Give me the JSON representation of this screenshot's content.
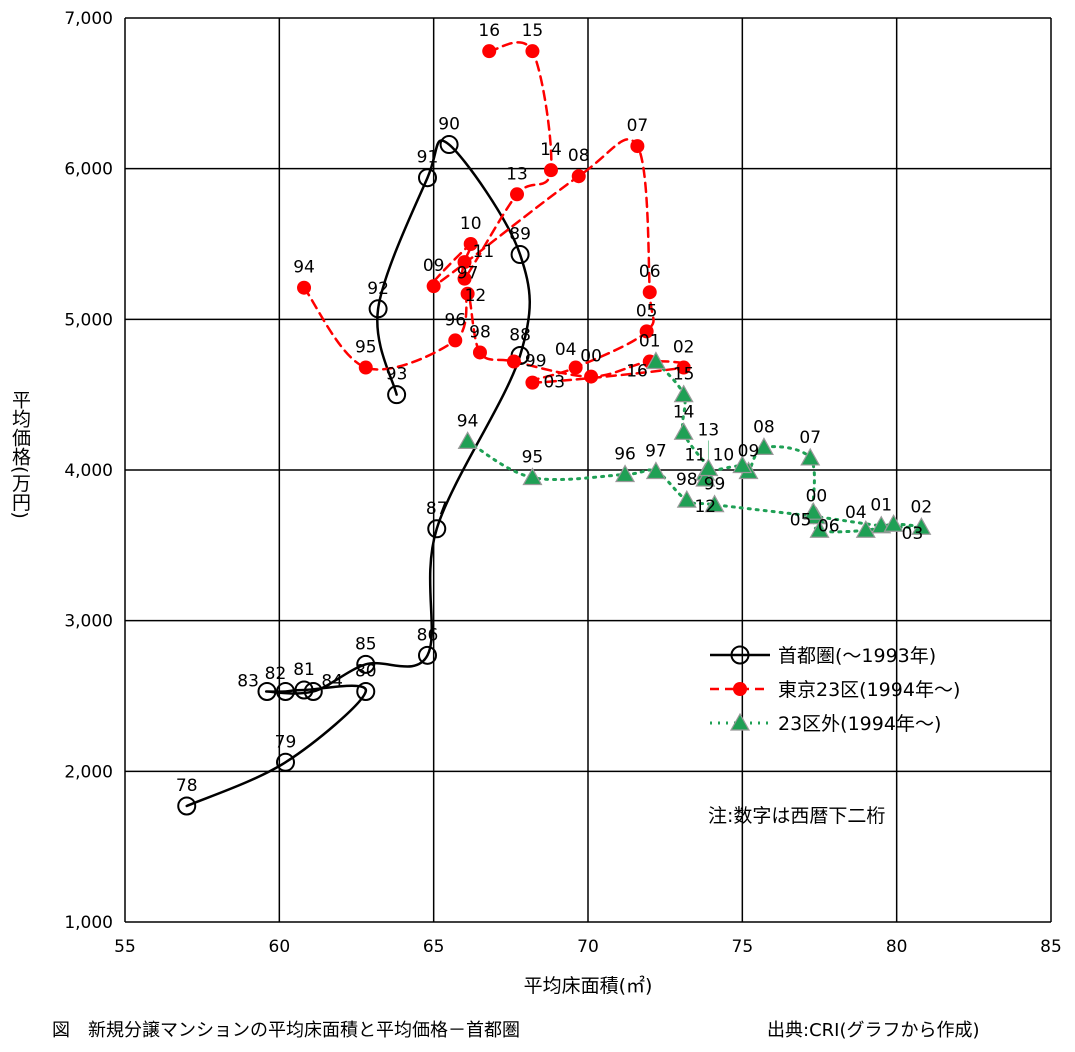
{
  "chart_data": {
    "type": "line",
    "title": "",
    "caption": "図　新規分譲マンションの平均床面積と平均価格－首都圏",
    "source": "出典:CRI(グラフから作成)",
    "xlabel": "平均床面積(㎡)",
    "ylabel": "平均価格(万円)",
    "xlim": [
      55,
      85
    ],
    "ylim": [
      1000,
      7000
    ],
    "xticks": [
      55,
      60,
      65,
      70,
      75,
      80,
      85
    ],
    "yticks": [
      1000,
      2000,
      3000,
      4000,
      5000,
      6000,
      7000
    ],
    "ytick_labels": [
      "1,000",
      "2,000",
      "3,000",
      "4,000",
      "5,000",
      "6,000",
      "7,000"
    ],
    "grid": true,
    "legend_position": "lower-right",
    "note": "注:数字は西暦下二桁",
    "series": [
      {
        "name": "首都圏(～1993年)",
        "color": "#000000",
        "marker": "open-circle",
        "line": "solid",
        "points": [
          {
            "label": "78",
            "x": 57.0,
            "y": 1770
          },
          {
            "label": "79",
            "x": 60.2,
            "y": 2060
          },
          {
            "label": "80",
            "x": 62.8,
            "y": 2530
          },
          {
            "label": "81",
            "x": 60.8,
            "y": 2540
          },
          {
            "label": "82",
            "x": 60.2,
            "y": 2530
          },
          {
            "label": "83",
            "x": 59.6,
            "y": 2530
          },
          {
            "label": "84",
            "x": 61.1,
            "y": 2530
          },
          {
            "label": "85",
            "x": 62.8,
            "y": 2710
          },
          {
            "label": "86",
            "x": 64.8,
            "y": 2770
          },
          {
            "label": "87",
            "x": 65.1,
            "y": 3610
          },
          {
            "label": "88",
            "x": 67.8,
            "y": 4760
          },
          {
            "label": "89",
            "x": 67.8,
            "y": 5430
          },
          {
            "label": "90",
            "x": 65.5,
            "y": 6160
          },
          {
            "label": "91",
            "x": 64.8,
            "y": 5940
          },
          {
            "label": "92",
            "x": 63.2,
            "y": 5070
          },
          {
            "label": "93",
            "x": 63.8,
            "y": 4500
          }
        ]
      },
      {
        "name": "東京23区(1994年～)",
        "color": "#ff0000",
        "marker": "filled-circle",
        "line": "dashed",
        "points": [
          {
            "label": "94",
            "x": 60.8,
            "y": 5210
          },
          {
            "label": "95",
            "x": 62.8,
            "y": 4680
          },
          {
            "label": "96",
            "x": 65.7,
            "y": 4860
          },
          {
            "label": "97",
            "x": 66.1,
            "y": 5170
          },
          {
            "label": "98",
            "x": 66.5,
            "y": 4780
          },
          {
            "label": "99",
            "x": 67.6,
            "y": 4720
          },
          {
            "label": "00",
            "x": 70.1,
            "y": 4620
          },
          {
            "label": "01",
            "x": 72.0,
            "y": 4720
          },
          {
            "label": "02",
            "x": 73.1,
            "y": 4680
          },
          {
            "label": "03",
            "x": 68.2,
            "y": 4580
          },
          {
            "label": "04",
            "x": 69.6,
            "y": 4680
          },
          {
            "label": "05",
            "x": 71.9,
            "y": 4920
          },
          {
            "label": "06",
            "x": 72.0,
            "y": 5180
          },
          {
            "label": "07",
            "x": 71.6,
            "y": 6150
          },
          {
            "label": "08",
            "x": 69.7,
            "y": 5950
          },
          {
            "label": "09",
            "x": 65.0,
            "y": 5220
          },
          {
            "label": "10",
            "x": 66.2,
            "y": 5500
          },
          {
            "label": "11",
            "x": 66.0,
            "y": 5380
          },
          {
            "label": "12",
            "x": 66.0,
            "y": 5270
          },
          {
            "label": "13",
            "x": 67.7,
            "y": 5830
          },
          {
            "label": "14",
            "x": 68.8,
            "y": 5990
          },
          {
            "label": "15",
            "x": 68.2,
            "y": 6780
          },
          {
            "label": "16",
            "x": 66.8,
            "y": 6780
          }
        ]
      },
      {
        "name": "23区外(1994年～)",
        "color": "#1fa055",
        "marker": "triangle",
        "line": "dotted",
        "points": [
          {
            "label": "94",
            "x": 66.1,
            "y": 4190
          },
          {
            "label": "95",
            "x": 68.2,
            "y": 3950
          },
          {
            "label": "96",
            "x": 71.2,
            "y": 3970
          },
          {
            "label": "97",
            "x": 72.2,
            "y": 3990
          },
          {
            "label": "98",
            "x": 73.2,
            "y": 3800
          },
          {
            "label": "99",
            "x": 74.1,
            "y": 3770
          },
          {
            "label": "00",
            "x": 77.4,
            "y": 3690
          },
          {
            "label": "01",
            "x": 79.5,
            "y": 3630
          },
          {
            "label": "02",
            "x": 80.8,
            "y": 3620
          },
          {
            "label": "03",
            "x": 79.9,
            "y": 3640
          },
          {
            "label": "04",
            "x": 79.0,
            "y": 3600
          },
          {
            "label": "05",
            "x": 77.5,
            "y": 3600
          },
          {
            "label": "06",
            "x": 77.3,
            "y": 3720
          },
          {
            "label": "07",
            "x": 77.2,
            "y": 4080
          },
          {
            "label": "08",
            "x": 75.7,
            "y": 4150
          },
          {
            "label": "09",
            "x": 75.2,
            "y": 3990
          },
          {
            "label": "10",
            "x": 75.0,
            "y": 4030
          },
          {
            "label": "11",
            "x": 73.8,
            "y": 3980
          },
          {
            "label": "12",
            "x": 73.8,
            "y": 3940
          },
          {
            "label": "13",
            "x": 73.9,
            "y": 4010
          },
          {
            "label": "14",
            "x": 73.1,
            "y": 4250
          },
          {
            "label": "15",
            "x": 73.1,
            "y": 4500
          },
          {
            "label": "16",
            "x": 72.2,
            "y": 4720
          }
        ]
      }
    ]
  }
}
